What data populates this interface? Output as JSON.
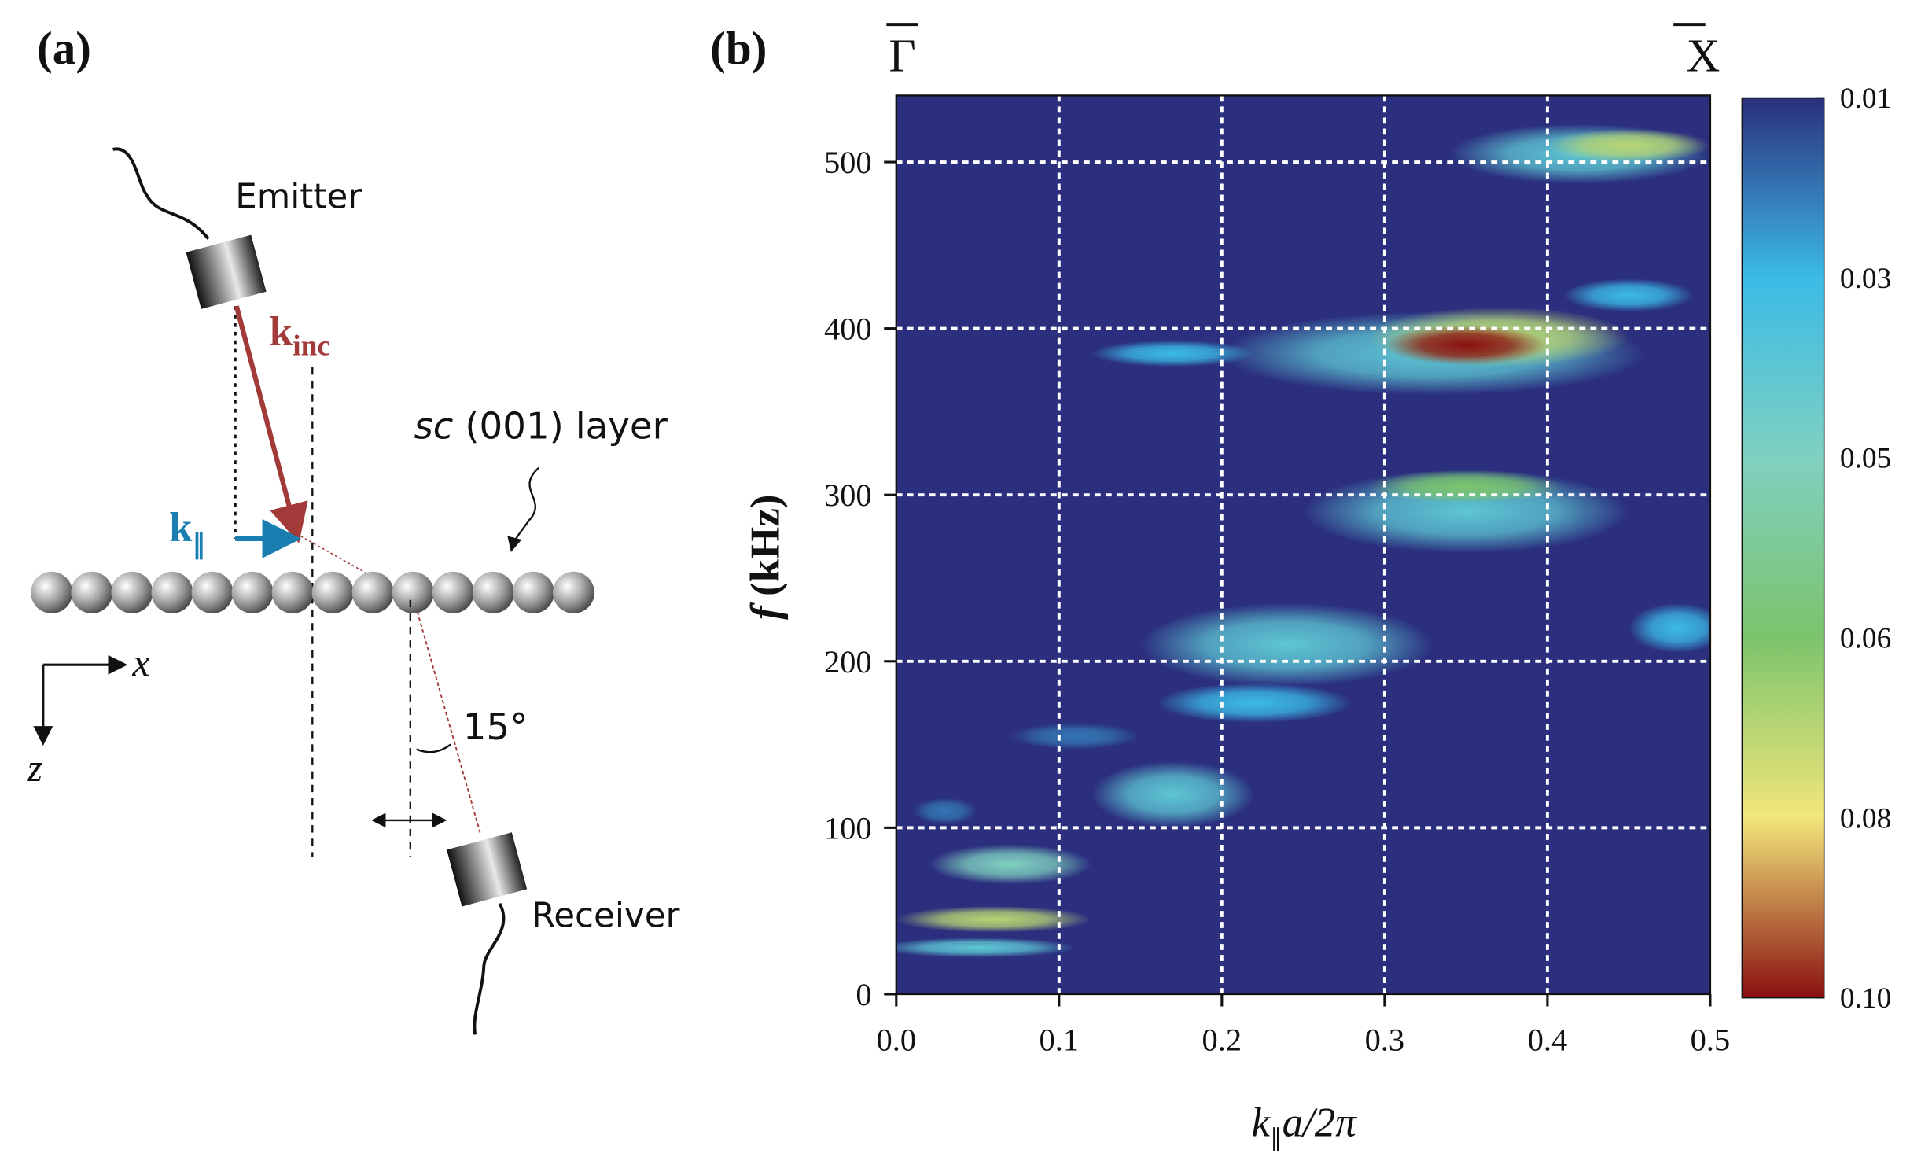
{
  "panel_a": {
    "label": "(a)",
    "emitter": "Emitter",
    "receiver": "Receiver",
    "k_inc": {
      "main": "k",
      "sub": "inc"
    },
    "k_par": {
      "main": "k",
      "sub": "∥"
    },
    "layer": {
      "italic": "sc",
      "rest": "(001) layer"
    },
    "angle": "15°",
    "x_axis": "x",
    "z_axis": "z"
  },
  "chart_data": {
    "type": "heatmap",
    "label": "(b)",
    "top_labels": [
      "Γ",
      "X"
    ],
    "xlabel": {
      "k": "k",
      "sub": "∥",
      "rest": "a/2π"
    },
    "ylabel": {
      "f": "f",
      "rest": "(kHz)"
    },
    "xlim": [
      0,
      0.5
    ],
    "xticks": [
      {
        "value": 0,
        "label": "0.0"
      },
      0.1,
      0.2,
      0.3,
      0.4,
      0.5
    ],
    "ylim": [
      0,
      540
    ],
    "yticks": [
      0,
      100,
      200,
      300,
      400,
      500
    ],
    "grid": true,
    "background": "#2b2f7e",
    "x": [
      0.33,
      0.37,
      0.35,
      0.17,
      0.42,
      0.45,
      0.35,
      0.35,
      0.48,
      0.24,
      0.22,
      0.17,
      0.11,
      0.07,
      0.06,
      0.05,
      0.03,
      0.45
    ],
    "y": [
      385,
      395,
      390,
      385,
      505,
      510,
      290,
      305,
      220,
      210,
      175,
      120,
      155,
      78,
      45,
      28,
      110,
      420
    ],
    "values": [
      0.04,
      0.07,
      0.1,
      0.03,
      0.04,
      0.07,
      0.04,
      0.06,
      0.03,
      0.04,
      0.03,
      0.04,
      0.02,
      0.05,
      0.07,
      0.04,
      0.02,
      0.03
    ],
    "x_halfwidth": [
      0.13,
      0.08,
      0.05,
      0.05,
      0.08,
      0.05,
      0.1,
      0.06,
      0.03,
      0.09,
      0.06,
      0.05,
      0.04,
      0.05,
      0.06,
      0.06,
      0.02,
      0.04
    ],
    "y_halfwidth": [
      25,
      18,
      12,
      8,
      18,
      10,
      25,
      10,
      15,
      25,
      12,
      20,
      8,
      12,
      8,
      6,
      8,
      10
    ],
    "colorbar_ticks": [
      0.01,
      0.03,
      0.05,
      0.06,
      0.08,
      {
        "value": 0.1,
        "label": "0.10"
      }
    ],
    "colorscale": [
      "#2b2f7e",
      "#3bbbe6",
      "#7fd0c0",
      "#7cc46c",
      "#f2e67a",
      "#8a1010"
    ]
  }
}
